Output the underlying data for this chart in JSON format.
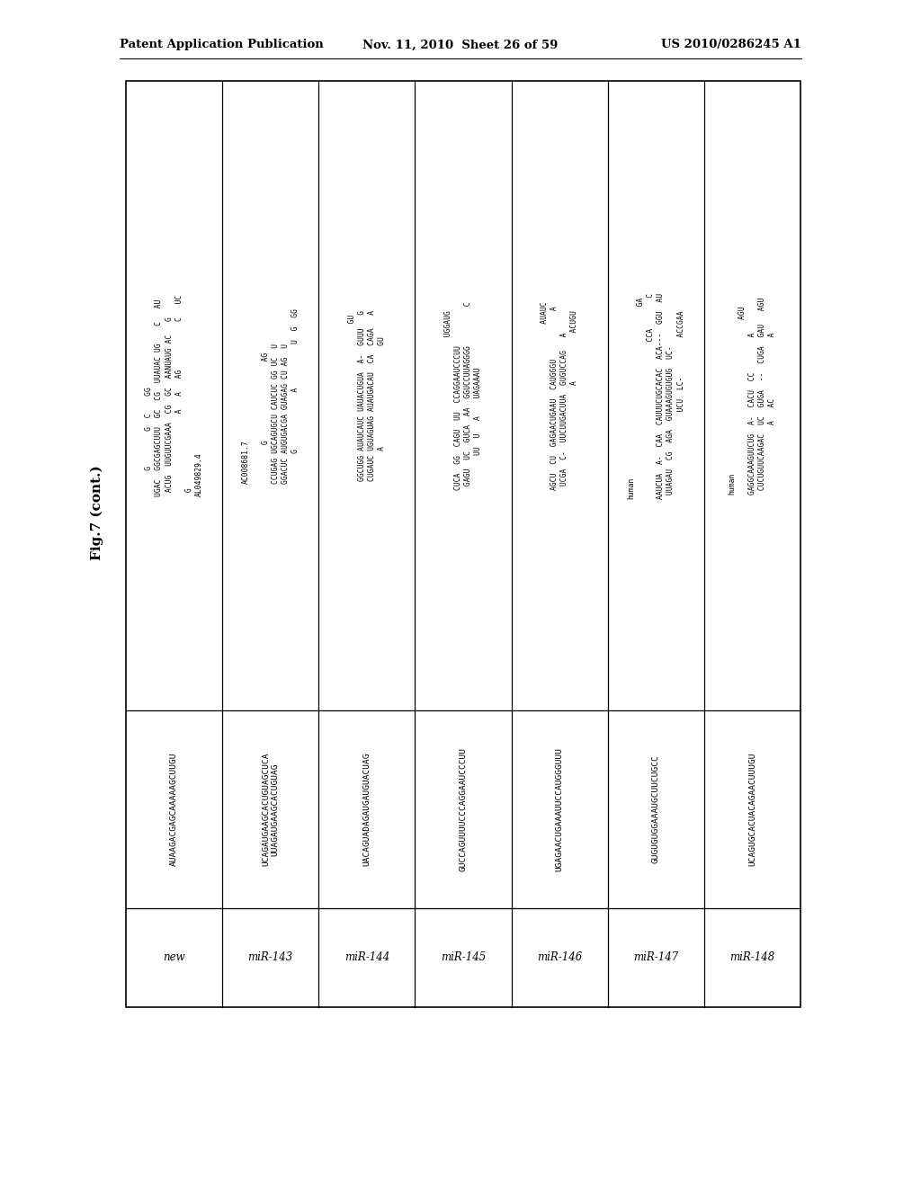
{
  "page_header_left": "Patent Application Publication",
  "page_header_center": "Nov. 11, 2010  Sheet 26 of 59",
  "page_header_right": "US 2010/0286245 A1",
  "figure_label": "Fig.7 (cont.)",
  "bg_color": "#ffffff",
  "text_color": "#000000",
  "rows": [
    {
      "name": "new",
      "sequence": "AUAAGACGAGCAAAAAGCUUGU",
      "structure_lines": [
        "      G        G  C    GG",
        "UGAC  GGCGAGCUUU  GC  CG  UUAUAC UG    C   AU",
        " ACUG  UUGUUCGAAA  CG  GC  AANUAUG AC   G",
        "                   A   A   AG           C   UC",
        " G",
        "AL049829.4"
      ],
      "accession": ""
    },
    {
      "name": "miR-143",
      "sequence": "UCAGAUGAAGCACUGUAGCUCA\nUUAGAUGAAGCACUGUAG",
      "structure_lines": [
        "AC008681.7",
        "",
        "         G                  AG",
        "CCUGAG UGCAGUGCU CAUCUC GG UC  U",
        "GGACUC AUGUGACGA GUAGAG CU AG  U",
        "       G             A          U  G  GG"
      ],
      "accession": "AC008681.7"
    },
    {
      "name": "miR-144",
      "sequence": "UACAGUADAGAUGAUGUACUAG",
      "structure_lines": [
        "                                    GU",
        "GGCUGG AUAUCAUC UAUACUGUA  A-  GUUU   G",
        "CUGAUC UGUAGUAG AUAUGACAU  CA  CAGA   A",
        "       A                       GU"
      ],
      "accession": ""
    },
    {
      "name": "miR-145",
      "sequence": "GUCCAGUUUUCCCAGGAAUCCCUU",
      "structure_lines": [
        "                                   UGGAUG",
        "CUCA  GG  CAGU  UU  CCAGGAAUCCCUU         ",
        " GAGU  UC  GUCA  AA  GGUCCUUAGGGG         C",
        "        UU  U   A    UAGAAAU"
      ],
      "accession": ""
    },
    {
      "name": "miR-146",
      "sequence": "UGAGAACUGAAAUUCCAUGGGUUU",
      "structure_lines": [
        "                                      AUAUC",
        "AGCU  CU  GAGAACUGAAU  CAUGGGU           A",
        " UCGA  C-  UUCUUGACUUA  GUGUCCAG   A",
        "                        A           ACUGU"
      ],
      "accession": ""
    },
    {
      "name": "miR-147",
      "sequence": "GUGUGUGGAAAUGCUUCUGCC",
      "structure_lines": [
        "human",
        "                                            GA",
        "                                    CCA       C",
        "AAUCUA  A-  CAA  CAUUUCUGCACAC  ACA---  GGU  AU",
        " UUAGAU  CG  AGA  GUAAAGUGUGUG  UC-",
        "                    UCU  LC-         ACCGAA"
      ],
      "accession": ""
    },
    {
      "name": "miR-148",
      "sequence": "UCAGUGCACUACAGAACUUUGU",
      "structure_lines": [
        "human",
        "                                        AGU",
        "GAGGCAAAGUUCUG  A-  CACU  CC        A",
        " CUCUGUUCAAGAC  UC  GUGA  --  CUGA  GAU   AGU",
        "                A   AC              A"
      ],
      "accession": ""
    }
  ]
}
